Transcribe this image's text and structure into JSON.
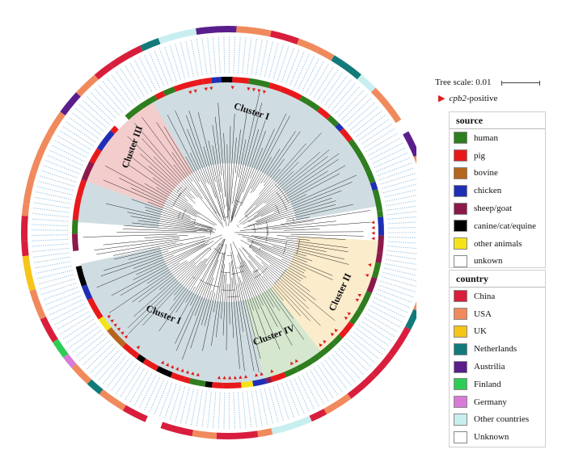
{
  "scale": {
    "label": "Tree scale: 0.01"
  },
  "marker": {
    "gene": "cpb2",
    "suffix": "-positive",
    "color": "#e01b1b"
  },
  "clusters": [
    {
      "label": "Cluster I",
      "color": "#cfdde2"
    },
    {
      "label": "Cluster II",
      "color": "#fbeccc"
    },
    {
      "label": "Cluster III",
      "color": "#f3cccc"
    },
    {
      "label": "Cluster IV",
      "color": "#d5e8cf"
    }
  ],
  "source": {
    "title": "source",
    "items": [
      {
        "label": "human",
        "color": "#2e7d1f"
      },
      {
        "label": "pig",
        "color": "#e8191b"
      },
      {
        "label": "bovine",
        "color": "#b5651d"
      },
      {
        "label": "chicken",
        "color": "#1f2fb5"
      },
      {
        "label": "sheep/goat",
        "color": "#8b1a4a"
      },
      {
        "label": "canine/cat/equine",
        "color": "#000000"
      },
      {
        "label": "other animals",
        "color": "#f5e31a"
      },
      {
        "label": "unkown",
        "color": "#ffffff"
      }
    ]
  },
  "country": {
    "title": "country",
    "items": [
      {
        "label": "China",
        "color": "#d81e3c"
      },
      {
        "label": "USA",
        "color": "#f08a5d"
      },
      {
        "label": "UK",
        "color": "#f5c518"
      },
      {
        "label": "Netherlands",
        "color": "#137a7a"
      },
      {
        "label": "Austrilia",
        "color": "#5a1e8c"
      },
      {
        "label": "Finland",
        "color": "#2ecc55"
      },
      {
        "label": "Germany",
        "color": "#d87ad8"
      },
      {
        "label": "Other countries",
        "color": "#c8eef0"
      },
      {
        "label": "Unknown",
        "color": "#ffffff"
      }
    ]
  }
}
